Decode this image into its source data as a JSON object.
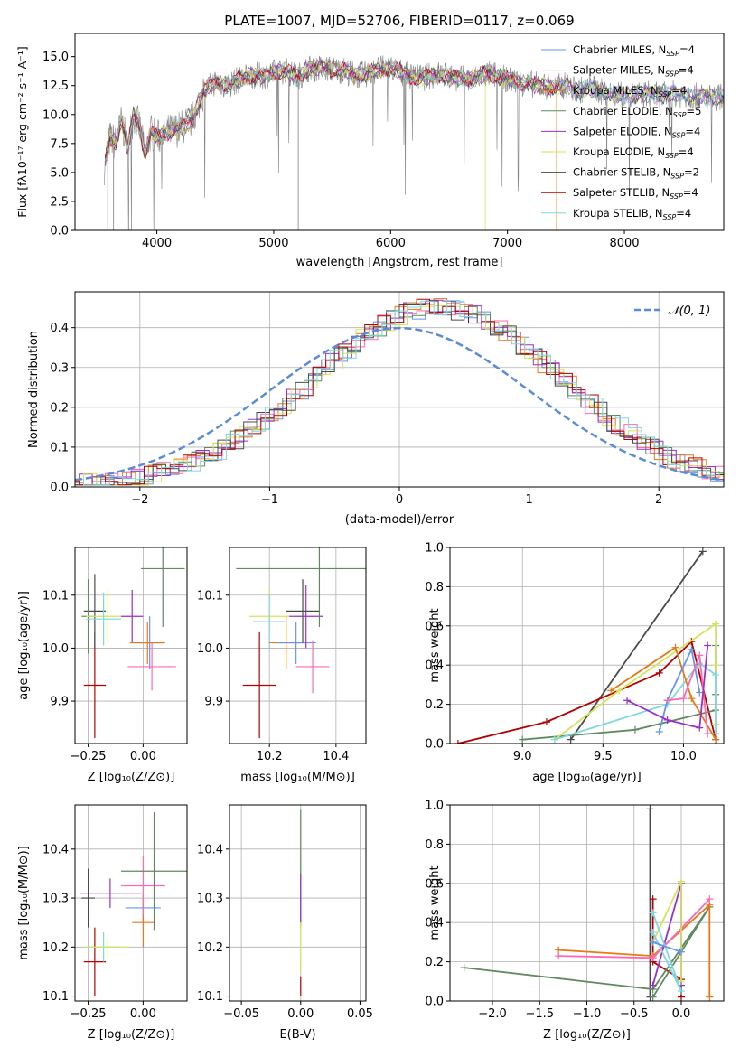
{
  "chart_data": [
    {
      "id": "spectrum",
      "type": "line",
      "title": "PLATE=1007, MJD=52706, FIBERID=0117, z=0.069",
      "xlabel": "wavelength [Angstrom, rest frame]",
      "ylabel": "Flux [fλ10⁻¹⁷ erg cm⁻² s⁻¹ A⁻¹]",
      "xlim": [
        3300,
        8850
      ],
      "ylim": [
        0,
        17
      ],
      "xticks": [
        4000,
        5000,
        6000,
        7000,
        8000
      ],
      "yticks": [
        0.0,
        2.5,
        5.0,
        7.5,
        10.0,
        12.5,
        15.0
      ],
      "grid": false,
      "legend": "right",
      "data_series": {
        "name": "data",
        "color": "#808080",
        "x": [
          3550,
          3600,
          3650,
          3700,
          3750,
          3800,
          3850,
          3900,
          3950,
          4000,
          4100,
          4200,
          4300,
          4400,
          4500,
          4600,
          4700,
          4800,
          4900,
          5000,
          5100,
          5200,
          5300,
          5400,
          5500,
          5600,
          5700,
          5800,
          5900,
          6000,
          6100,
          6200,
          6300,
          6400,
          6500,
          6600,
          6700,
          6800,
          6900,
          7000,
          7100,
          7200,
          7300,
          7400,
          7500,
          7600,
          7700,
          7800,
          7900,
          8000,
          8100,
          8200,
          8300,
          8400,
          8500,
          8600,
          8700,
          8800
        ],
        "y": [
          5.5,
          8.0,
          7.5,
          9.5,
          7.0,
          10.0,
          9.0,
          6.5,
          8.5,
          8.0,
          8.5,
          8.8,
          9.5,
          12.0,
          12.8,
          12.5,
          13.0,
          13.4,
          13.3,
          13.6,
          13.8,
          13.2,
          14.0,
          14.0,
          13.9,
          13.8,
          13.4,
          13.5,
          13.9,
          14.0,
          13.6,
          13.2,
          13.2,
          13.5,
          13.3,
          13.1,
          13.0,
          13.5,
          13.4,
          13.0,
          12.8,
          12.6,
          12.5,
          12.3,
          12.5,
          12.0,
          12.4,
          12.0,
          11.8,
          11.6,
          11.7,
          11.8,
          11.6,
          11.8,
          11.7,
          11.6,
          11.5,
          11.5
        ]
      },
      "series": [
        {
          "name": "Chabrier MILES, N_SSP=4",
          "color": "#6495ED"
        },
        {
          "name": "Salpeter MILES, N_SSP=4",
          "color": "#FF69B4"
        },
        {
          "name": "Kroupa MILES, N_SSP=4",
          "color": "#E87817"
        },
        {
          "name": "Chabrier ELODIE, N_SSP=5",
          "color": "#5F8A5F"
        },
        {
          "name": "Salpeter ELODIE, N_SSP=4",
          "color": "#9B30C8"
        },
        {
          "name": "Kroupa ELODIE, N_SSP=4",
          "color": "#D4E35A"
        },
        {
          "name": "Chabrier STELIB, N_SSP=2",
          "color": "#4A4A4A"
        },
        {
          "name": "Salpeter STELIB, N_SSP=4",
          "color": "#B40000"
        },
        {
          "name": "Kroupa STELIB, N_SSP=4",
          "color": "#7FD8DF"
        }
      ],
      "legend_entries": [
        {
          "name": "Chabrier MILES, N",
          "sub": "SSP",
          "tail": "=4"
        },
        {
          "name": "Salpeter MILES, N",
          "sub": "SSP",
          "tail": "=4"
        },
        {
          "name": "Kroupa MILES, N",
          "sub": "SSP",
          "tail": "=4"
        },
        {
          "name": "Chabrier ELODIE, N",
          "sub": "SSP",
          "tail": "=5"
        },
        {
          "name": "Salpeter ELODIE, N",
          "sub": "SSP",
          "tail": "=4"
        },
        {
          "name": "Kroupa ELODIE, N",
          "sub": "SSP",
          "tail": "=4"
        },
        {
          "name": "Chabrier STELIB, N",
          "sub": "SSP",
          "tail": "=2"
        },
        {
          "name": "Salpeter STELIB, N",
          "sub": "SSP",
          "tail": "=4"
        },
        {
          "name": "Kroupa STELIB, N",
          "sub": "SSP",
          "tail": "=4"
        }
      ]
    },
    {
      "id": "residuals",
      "type": "line",
      "xlabel": "(data-model)/error",
      "ylabel": "Normed distribution",
      "xlim": [
        -2.5,
        2.5
      ],
      "ylim": [
        0,
        0.49
      ],
      "xticks": [
        -2,
        -1,
        0,
        1,
        2
      ],
      "yticks": [
        0.0,
        0.1,
        0.2,
        0.3,
        0.4
      ],
      "grid": true,
      "legend": "top-right",
      "gaussian_label": "𝒩(0, 1)",
      "gaussian_color": "#5B8BD6"
    },
    {
      "id": "age-vs-Z",
      "type": "scatter",
      "xlabel": "Z [log₁₀(Z/Z⊙)]",
      "ylabel": "age  [log₁₀(age/yr)]",
      "xlim": [
        -0.31,
        0.2
      ],
      "ylim": [
        9.82,
        10.19
      ],
      "xticks": [
        -0.25,
        0.0
      ],
      "xtick_labels": [
        "−0.25",
        "0.00"
      ],
      "yticks": [
        9.9,
        10.0,
        10.1
      ],
      "ytick_labels": [
        "9.9",
        "10.0",
        "10.1"
      ],
      "grid": true,
      "points": [
        {
          "x": -0.22,
          "y": 9.93,
          "xerr": 0.05,
          "yerr": 0.1,
          "color": "#B40000"
        },
        {
          "x": -0.22,
          "y": 10.07,
          "xerr": 0.05,
          "yerr": 0.07,
          "color": "#4A4A4A"
        },
        {
          "x": -0.25,
          "y": 10.06,
          "xerr": 0.03,
          "yerr": 0.07,
          "color": "#5F8A5F"
        },
        {
          "x": -0.16,
          "y": 10.06,
          "xerr": 0.1,
          "yerr": 0.05,
          "color": "#D4E35A"
        },
        {
          "x": -0.18,
          "y": 10.055,
          "xerr": 0.08,
          "yerr": 0.05,
          "color": "#7FD8DF"
        },
        {
          "x": -0.05,
          "y": 10.06,
          "xerr": 0.05,
          "yerr": 0.05,
          "color": "#9B30C8"
        },
        {
          "x": 0.03,
          "y": 10.01,
          "xerr": 0.06,
          "yerr": 0.05,
          "color": "#6495ED"
        },
        {
          "x": 0.02,
          "y": 10.01,
          "xerr": 0.08,
          "yerr": 0.04,
          "color": "#E87817"
        },
        {
          "x": 0.04,
          "y": 9.965,
          "xerr": 0.11,
          "yerr": 0.045,
          "color": "#FF69B4"
        },
        {
          "x": 0.09,
          "y": 10.15,
          "xerr": 0.1,
          "yerr": 0.11,
          "color": "#5F8A5F"
        }
      ]
    },
    {
      "id": "age-vs-mass",
      "type": "scatter",
      "xlabel": "mass [log₁₀(M/M⊙)]",
      "xlim": [
        10.08,
        10.49
      ],
      "ylim": [
        9.82,
        10.19
      ],
      "xticks": [
        10.2,
        10.4
      ],
      "xtick_labels": [
        "10.2",
        "10.4"
      ],
      "yticks": [
        9.9,
        10.0,
        10.1
      ],
      "ytick_labels": [
        "9.9",
        "10.0",
        "10.1"
      ],
      "grid": true,
      "points": [
        {
          "x": 10.17,
          "y": 9.93,
          "xerr": 0.05,
          "yerr": 0.1,
          "color": "#B40000"
        },
        {
          "x": 10.2,
          "y": 10.06,
          "xerr": 0.06,
          "yerr": 0.05,
          "color": "#D4E35A"
        },
        {
          "x": 10.2,
          "y": 10.05,
          "xerr": 0.05,
          "yerr": 0.05,
          "color": "#7FD8DF"
        },
        {
          "x": 10.25,
          "y": 10.01,
          "xerr": 0.05,
          "yerr": 0.05,
          "color": "#E87817"
        },
        {
          "x": 10.28,
          "y": 10.01,
          "xerr": 0.06,
          "yerr": 0.04,
          "color": "#6495ED"
        },
        {
          "x": 10.31,
          "y": 10.06,
          "xerr": 0.05,
          "yerr": 0.06,
          "color": "#9B30C8"
        },
        {
          "x": 10.3,
          "y": 10.07,
          "xerr": 0.05,
          "yerr": 0.06,
          "color": "#4A4A4A"
        },
        {
          "x": 10.33,
          "y": 9.965,
          "xerr": 0.05,
          "yerr": 0.05,
          "color": "#FF69B4"
        },
        {
          "x": 10.35,
          "y": 10.15,
          "xerr": 0.25,
          "yerr": 0.11,
          "color": "#5F8A5F"
        }
      ]
    },
    {
      "id": "massweight-vs-age",
      "type": "line",
      "xlabel": "age  [log₁₀(age/yr)]",
      "ylabel": "mass weight",
      "xlim": [
        8.55,
        10.25
      ],
      "ylim": [
        0,
        1.0
      ],
      "xticks": [
        9.0,
        9.5,
        10.0
      ],
      "xtick_labels": [
        "9.0",
        "9.5",
        "10.0"
      ],
      "yticks": [
        0.0,
        0.2,
        0.4,
        0.6,
        0.8,
        1.0
      ],
      "ytick_labels": [
        "0.0",
        "0.2",
        "0.4",
        "0.6",
        "0.8",
        "1.0"
      ],
      "grid": true,
      "lines": [
        {
          "color": "#4A4A4A",
          "x": [
            9.3,
            10.12
          ],
          "y": [
            0.02,
            0.98
          ]
        },
        {
          "color": "#B40000",
          "x": [
            8.6,
            9.15,
            9.85,
            10.05,
            10.2
          ],
          "y": [
            0.0,
            0.11,
            0.36,
            0.52,
            0.02
          ]
        },
        {
          "color": "#5F8A5F",
          "x": [
            9.0,
            9.7,
            10.2,
            10.2,
            10.2
          ],
          "y": [
            0.02,
            0.07,
            0.17,
            0.25,
            0.5
          ]
        },
        {
          "color": "#D4E35A",
          "x": [
            9.2,
            9.6,
            10.2,
            10.2,
            10.2
          ],
          "y": [
            0.02,
            0.27,
            0.61,
            0.4,
            0.1
          ]
        },
        {
          "color": "#7FD8DF",
          "x": [
            9.2,
            9.9,
            10.1,
            10.2,
            10.2
          ],
          "y": [
            0.02,
            0.2,
            0.41,
            0.35,
            0.05
          ]
        },
        {
          "color": "#E87817",
          "x": [
            9.55,
            9.95,
            10.05,
            10.2
          ],
          "y": [
            0.27,
            0.49,
            0.23,
            0.02
          ]
        },
        {
          "color": "#6495ED",
          "x": [
            9.85,
            9.9,
            10.05,
            10.1
          ],
          "y": [
            0.06,
            0.22,
            0.48,
            0.26
          ]
        },
        {
          "color": "#FF69B4",
          "x": [
            9.9,
            10.0,
            10.1,
            10.15
          ],
          "y": [
            0.22,
            0.23,
            0.45,
            0.05
          ]
        },
        {
          "color": "#9B30C8",
          "x": [
            9.65,
            9.9,
            10.1,
            10.15
          ],
          "y": [
            0.22,
            0.12,
            0.08,
            0.5
          ]
        }
      ]
    },
    {
      "id": "mass-vs-Z",
      "type": "scatter",
      "xlabel": "Z [log₁₀(Z/Z⊙)]",
      "ylabel": "mass [log₁₀(M/M⊙)]",
      "xlim": [
        -0.31,
        0.2
      ],
      "ylim": [
        10.09,
        10.49
      ],
      "xticks": [
        -0.25,
        0.0
      ],
      "xtick_labels": [
        "−0.25",
        "0.00"
      ],
      "yticks": [
        10.1,
        10.2,
        10.3,
        10.4
      ],
      "ytick_labels": [
        "10.1",
        "10.2",
        "10.3",
        "10.4"
      ],
      "grid": true,
      "points": [
        {
          "x": -0.22,
          "y": 10.17,
          "xerr": 0.05,
          "yerr": 0.07,
          "color": "#B40000"
        },
        {
          "x": -0.25,
          "y": 10.3,
          "xerr": 0.03,
          "yerr": 0.06,
          "color": "#4A4A4A"
        },
        {
          "x": -0.18,
          "y": 10.2,
          "xerr": 0.08,
          "yerr": 0.03,
          "color": "#7FD8DF"
        },
        {
          "x": -0.16,
          "y": 10.2,
          "xerr": 0.1,
          "yerr": 0.02,
          "color": "#D4E35A"
        },
        {
          "x": -0.15,
          "y": 10.31,
          "xerr": 0.14,
          "yerr": 0.03,
          "color": "#9B30C8"
        },
        {
          "x": 0.0,
          "y": 10.28,
          "xerr": 0.08,
          "yerr": 0.03,
          "color": "#6495ED"
        },
        {
          "x": 0.0,
          "y": 10.25,
          "xerr": 0.05,
          "yerr": 0.05,
          "color": "#E87817"
        },
        {
          "x": 0.0,
          "y": 10.325,
          "xerr": 0.1,
          "yerr": 0.06,
          "color": "#FF69B4"
        },
        {
          "x": 0.05,
          "y": 10.355,
          "xerr": 0.15,
          "yerr": 0.12,
          "color": "#5F8A5F"
        }
      ]
    },
    {
      "id": "mass-vs-EBV",
      "type": "scatter",
      "xlabel": "E(B-V)",
      "xlim": [
        -0.06,
        0.055
      ],
      "ylim": [
        10.09,
        10.49
      ],
      "xticks": [
        -0.05,
        0.0,
        0.05
      ],
      "xtick_labels": [
        "−0.05",
        "0.00",
        "0.05"
      ],
      "yticks": [
        10.1,
        10.2,
        10.3,
        10.4
      ],
      "ytick_labels": [
        "10.1",
        "10.2",
        "10.3",
        "10.4"
      ],
      "grid": true,
      "points": [
        {
          "x": 0.0,
          "y": 10.36,
          "xerr": 0,
          "yerr": 0.12,
          "color": "#5F8A5F"
        },
        {
          "x": 0.0,
          "y": 10.3,
          "xerr": 0,
          "yerr": 0.05,
          "color": "#9B30C8"
        },
        {
          "x": 0.0,
          "y": 10.2,
          "xerr": 0,
          "yerr": 0.05,
          "color": "#D4E35A"
        },
        {
          "x": 0.0,
          "y": 10.12,
          "xerr": 0,
          "yerr": 0.02,
          "color": "#B40000"
        }
      ]
    },
    {
      "id": "massweight-vs-Z",
      "type": "line",
      "xlabel": "Z [log₁₀(Z/Z⊙)]",
      "ylabel": "mass weight",
      "xlim": [
        -2.45,
        0.45
      ],
      "ylim": [
        0,
        1.0
      ],
      "xticks": [
        -2.0,
        -1.5,
        -1.0,
        -0.5,
        0.0
      ],
      "xtick_labels": [
        "−2.0",
        "−1.5",
        "−1.0",
        "−0.5",
        "0.0"
      ],
      "yticks": [
        0.0,
        0.2,
        0.4,
        0.6,
        0.8,
        1.0
      ],
      "ytick_labels": [
        "0.0",
        "0.2",
        "0.4",
        "0.6",
        "0.8",
        "1.0"
      ],
      "grid": true,
      "lines": [
        {
          "color": "#4A4A4A",
          "x": [
            -0.33,
            -0.33
          ],
          "y": [
            0.98,
            0.02
          ]
        },
        {
          "color": "#B40000",
          "x": [
            -0.3,
            -0.3,
            0.0,
            0.0
          ],
          "y": [
            0.52,
            0.2,
            0.11,
            0.02
          ]
        },
        {
          "color": "#5F8A5F",
          "x": [
            -2.3,
            -0.3,
            0.3,
            -0.3
          ],
          "y": [
            0.17,
            0.06,
            0.48,
            0.02
          ]
        },
        {
          "color": "#E87817",
          "x": [
            -1.3,
            -0.3,
            0.3,
            0.3
          ],
          "y": [
            0.26,
            0.23,
            0.49,
            0.02
          ]
        },
        {
          "color": "#FF69B4",
          "x": [
            -1.3,
            -0.3,
            0.3
          ],
          "y": [
            0.23,
            0.22,
            0.52
          ]
        },
        {
          "color": "#9B30C8",
          "x": [
            -0.3,
            0.0,
            0.0
          ],
          "y": [
            0.08,
            0.6,
            0.08
          ]
        },
        {
          "color": "#D4E35A",
          "x": [
            -0.3,
            0.0,
            0.0
          ],
          "y": [
            0.3,
            0.61,
            0.1
          ]
        },
        {
          "color": "#7FD8DF",
          "x": [
            -0.3,
            0.0,
            -0.3
          ],
          "y": [
            0.45,
            0.05,
            0.35
          ]
        },
        {
          "color": "#6495ED",
          "x": [
            -0.3,
            0.0
          ],
          "y": [
            0.3,
            0.25
          ]
        }
      ]
    }
  ]
}
